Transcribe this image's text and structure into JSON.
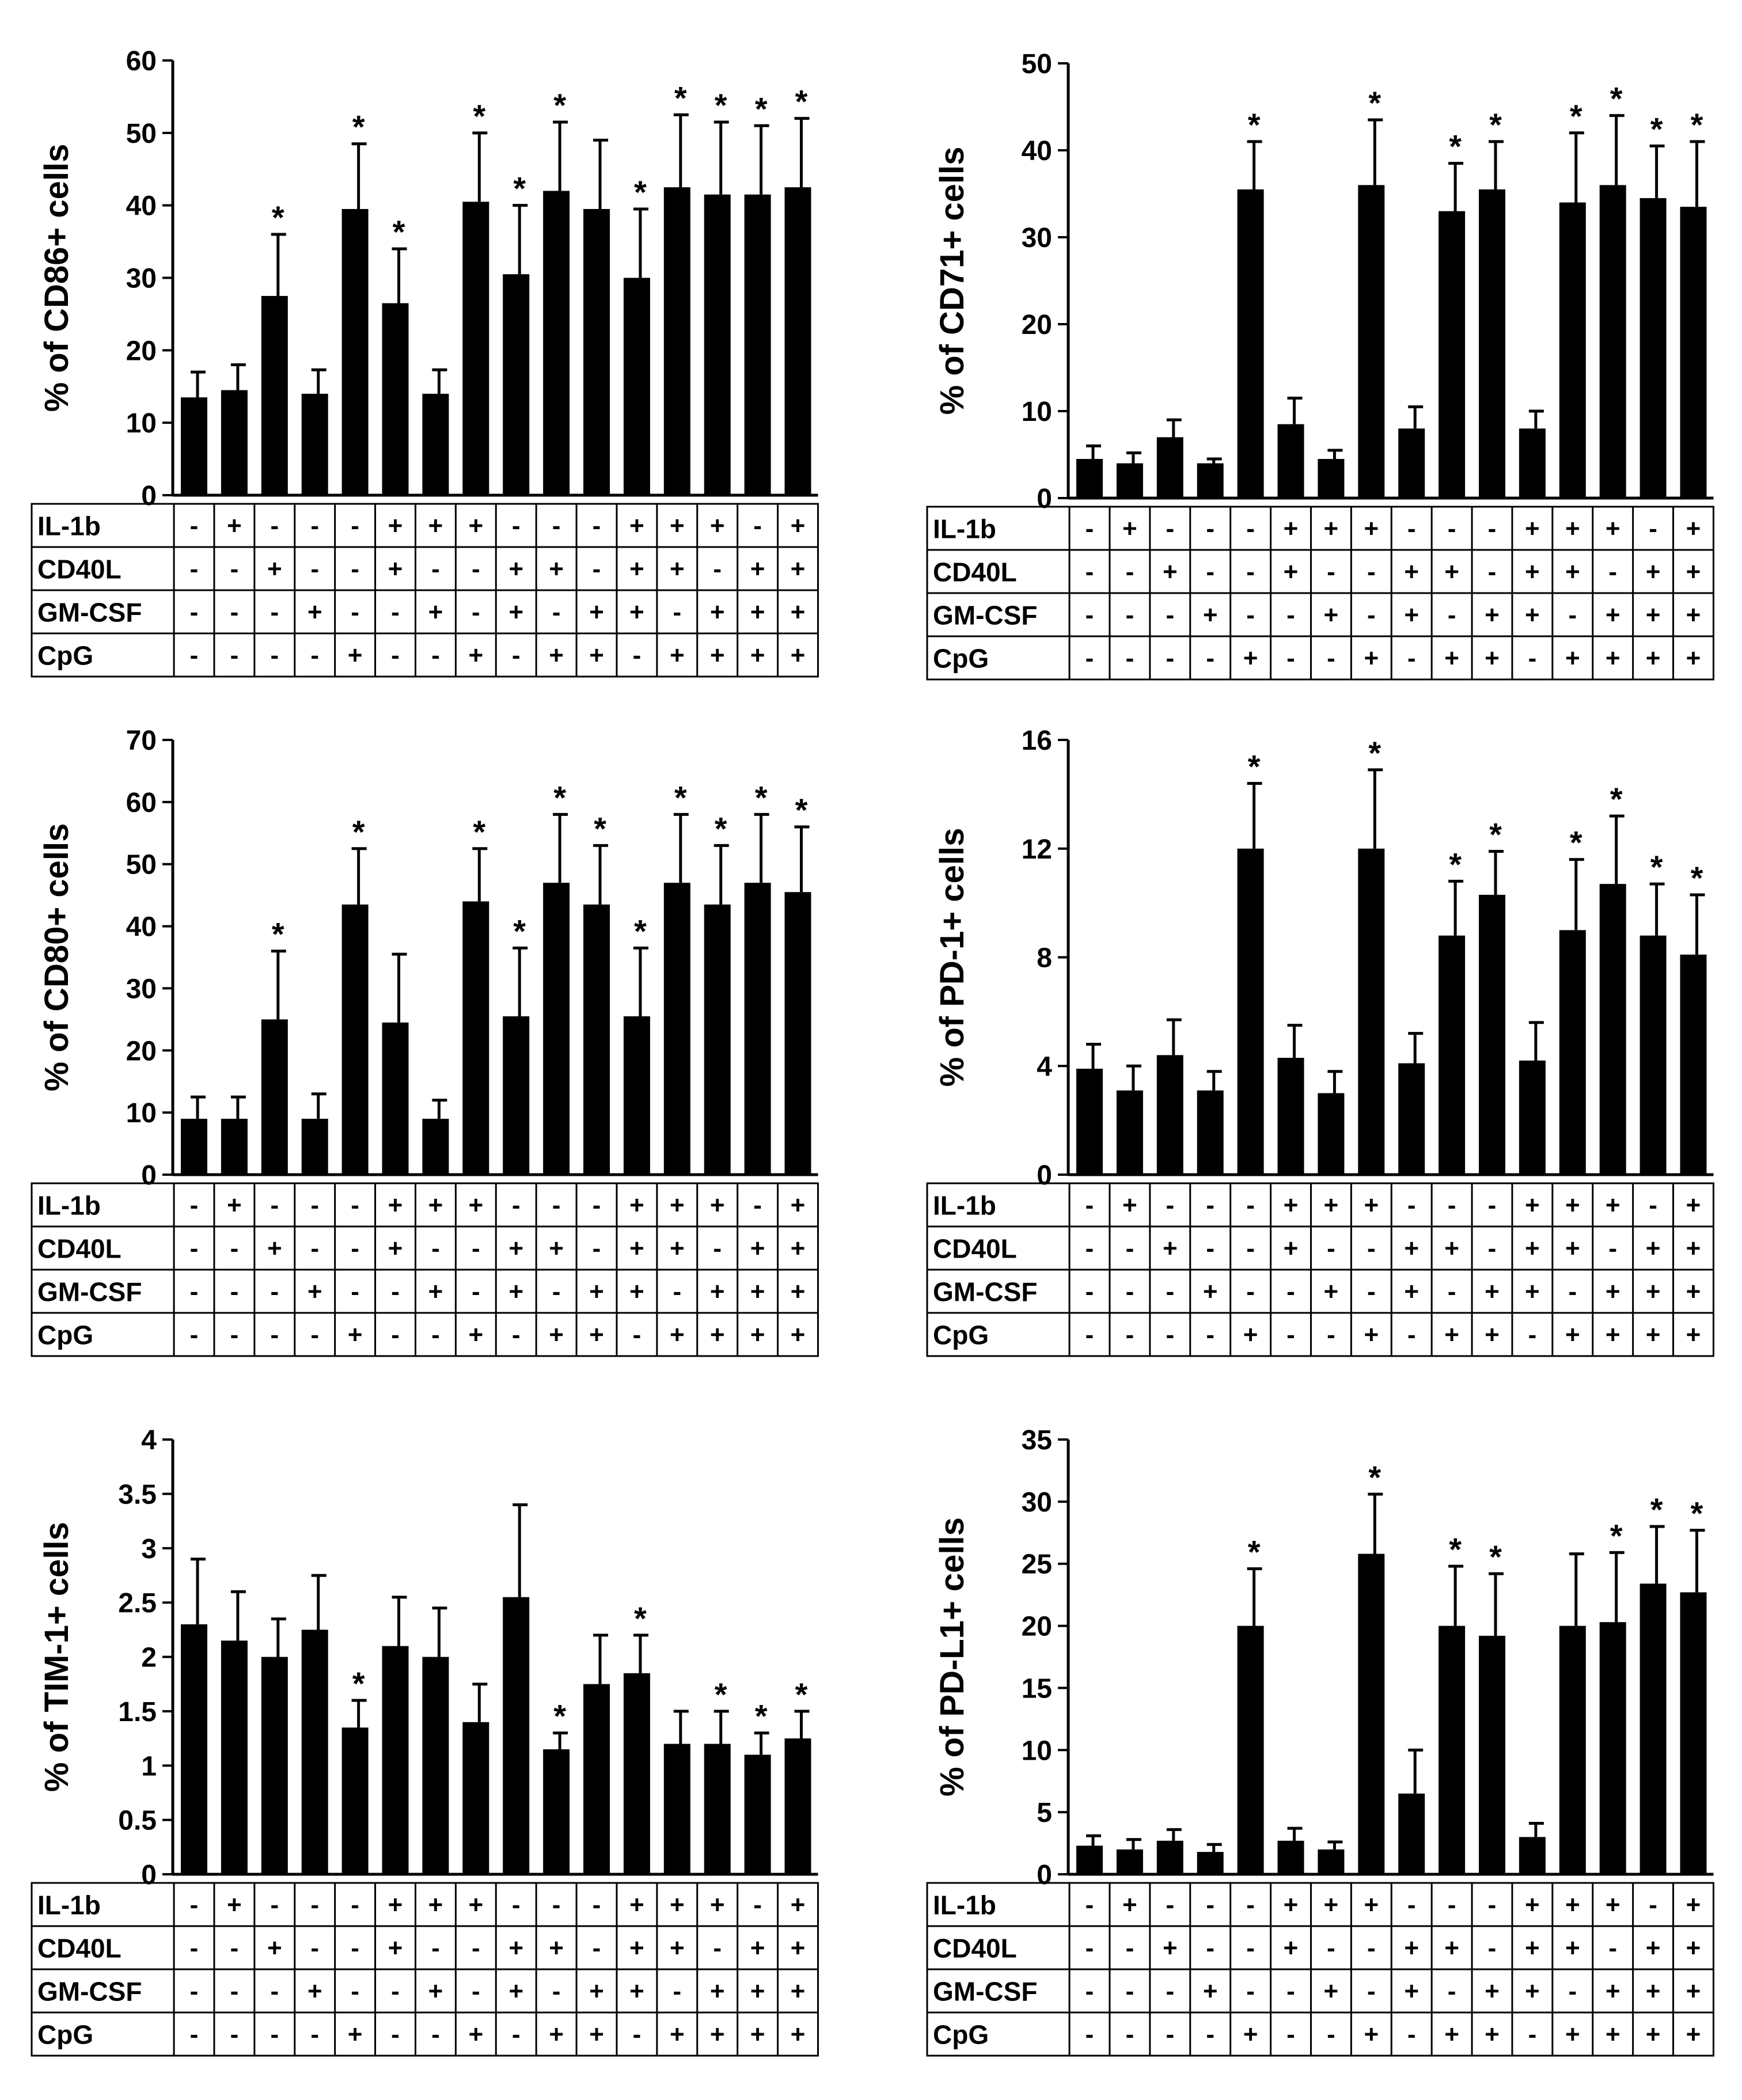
{
  "conditions": {
    "row_labels": [
      "IL-1b",
      "CD40L",
      "GM-CSF",
      "CpG"
    ],
    "rows": [
      [
        "-",
        "+",
        "-",
        "-",
        "-",
        "+",
        "+",
        "+",
        "-",
        "-",
        "-",
        "+",
        "+",
        "+",
        "-",
        "+"
      ],
      [
        "-",
        "-",
        "+",
        "-",
        "-",
        "+",
        "-",
        "-",
        "+",
        "+",
        "-",
        "+",
        "+",
        "-",
        "+",
        "+"
      ],
      [
        "-",
        "-",
        "-",
        "+",
        "-",
        "-",
        "+",
        "-",
        "+",
        "-",
        "+",
        "+",
        "-",
        "+",
        "+",
        "+"
      ],
      [
        "-",
        "-",
        "-",
        "-",
        "+",
        "-",
        "-",
        "+",
        "-",
        "+",
        "+",
        "-",
        "+",
        "+",
        "+",
        "+"
      ]
    ]
  },
  "chart_data": [
    {
      "id": "cd86",
      "type": "bar",
      "ylabel": "% of CD86+ cells",
      "ylim": [
        0,
        60
      ],
      "yticks": [
        0,
        10,
        20,
        30,
        40,
        50,
        60
      ],
      "ytick_labels": [
        "0",
        "10",
        "20",
        "30",
        "40",
        "50",
        "60"
      ],
      "values": [
        13.5,
        14.5,
        27.5,
        14,
        39.5,
        26.5,
        14,
        40.5,
        30.5,
        42,
        39.5,
        30,
        42.5,
        41.5,
        41.5,
        42.5
      ],
      "errors": [
        3.5,
        3.5,
        8.5,
        3.3,
        9,
        7.5,
        3.3,
        9.5,
        9.5,
        9.5,
        9.5,
        9.5,
        10,
        10,
        9.5,
        9.5
      ],
      "significant": [
        false,
        false,
        true,
        false,
        true,
        true,
        false,
        true,
        true,
        true,
        false,
        true,
        true,
        true,
        true,
        true
      ],
      "marker": "*"
    },
    {
      "id": "cd71",
      "type": "bar",
      "ylabel": "% of CD71+ cells",
      "ylim": [
        0,
        50
      ],
      "yticks": [
        0,
        10,
        20,
        30,
        40,
        50
      ],
      "ytick_labels": [
        "0",
        "10",
        "20",
        "30",
        "40",
        "50"
      ],
      "values": [
        4.5,
        4,
        7,
        4,
        35.5,
        8.5,
        4.5,
        36,
        8,
        33,
        35.5,
        8,
        34,
        36,
        34.5,
        33.5
      ],
      "errors": [
        1.5,
        1.2,
        2,
        0.5,
        5.5,
        3,
        1,
        7.5,
        2.5,
        5.5,
        5.5,
        2,
        8,
        8,
        6,
        7.5
      ],
      "significant": [
        false,
        false,
        false,
        false,
        true,
        false,
        false,
        true,
        false,
        true,
        true,
        false,
        true,
        true,
        true,
        true
      ],
      "marker": "*"
    },
    {
      "id": "cd80",
      "type": "bar",
      "ylabel": "% of CD80+ cells",
      "ylim": [
        0,
        70
      ],
      "yticks": [
        0,
        10,
        20,
        30,
        40,
        50,
        60,
        70
      ],
      "ytick_labels": [
        "0",
        "10",
        "20",
        "30",
        "40",
        "50",
        "60",
        "70"
      ],
      "values": [
        9,
        9,
        25,
        9,
        43.5,
        24.5,
        9,
        44,
        25.5,
        47,
        43.5,
        25.5,
        47,
        43.5,
        47,
        45.5
      ],
      "errors": [
        3.5,
        3.5,
        11,
        4,
        9,
        11,
        3,
        8.5,
        11,
        11,
        9.5,
        11,
        11,
        9.5,
        11,
        10.5
      ],
      "significant": [
        false,
        false,
        true,
        false,
        true,
        false,
        false,
        true,
        true,
        true,
        true,
        true,
        true,
        true,
        true,
        true
      ],
      "marker": "*"
    },
    {
      "id": "pd1",
      "type": "bar",
      "ylabel": "% of PD-1+ cells",
      "ylim": [
        0,
        16
      ],
      "yticks": [
        0,
        4,
        8,
        12,
        16
      ],
      "ytick_labels": [
        "0",
        "4",
        "8",
        "12",
        "16"
      ],
      "values": [
        3.9,
        3.1,
        4.4,
        3.1,
        12,
        4.3,
        3,
        12,
        4.1,
        8.8,
        10.3,
        4.2,
        9,
        10.7,
        8.8,
        8.1
      ],
      "errors": [
        0.9,
        0.9,
        1.3,
        0.7,
        2.4,
        1.2,
        0.8,
        2.9,
        1.1,
        2,
        1.6,
        1.4,
        2.6,
        2.5,
        1.9,
        2.2
      ],
      "significant": [
        false,
        false,
        false,
        false,
        true,
        false,
        false,
        true,
        false,
        true,
        true,
        false,
        true,
        true,
        true,
        true
      ],
      "marker": "*"
    },
    {
      "id": "tim1",
      "type": "bar",
      "ylabel": "% of TIM-1+ cells",
      "ylim": [
        0,
        4
      ],
      "yticks": [
        0,
        0.5,
        1,
        1.5,
        2,
        2.5,
        3,
        3.5,
        4
      ],
      "ytick_labels": [
        "0",
        "0.5",
        "1",
        "1.5",
        "2",
        "2.5",
        "3",
        "3.5",
        "4"
      ],
      "values": [
        2.3,
        2.15,
        2,
        2.25,
        1.35,
        2.1,
        2,
        1.4,
        2.55,
        1.15,
        1.75,
        1.85,
        1.2,
        1.2,
        1.1,
        1.25
      ],
      "errors": [
        0.6,
        0.45,
        0.35,
        0.5,
        0.25,
        0.45,
        0.45,
        0.35,
        0.85,
        0.15,
        0.45,
        0.35,
        0.3,
        0.3,
        0.2,
        0.25
      ],
      "significant": [
        false,
        false,
        false,
        false,
        true,
        false,
        false,
        false,
        false,
        true,
        false,
        true,
        false,
        true,
        true,
        true
      ],
      "marker": "*"
    },
    {
      "id": "pdl1",
      "type": "bar",
      "ylabel": "% of PD-L1+ cells",
      "ylim": [
        0,
        35
      ],
      "yticks": [
        0,
        5,
        10,
        15,
        20,
        25,
        30,
        35
      ],
      "ytick_labels": [
        "0",
        "5",
        "10",
        "15",
        "20",
        "25",
        "30",
        "35"
      ],
      "values": [
        2.3,
        2,
        2.7,
        1.8,
        20,
        2.7,
        2,
        25.8,
        6.5,
        20,
        19.2,
        3,
        20,
        20.3,
        23.4,
        22.7
      ],
      "errors": [
        0.8,
        0.8,
        0.9,
        0.6,
        4.6,
        1,
        0.6,
        4.8,
        3.5,
        4.8,
        5,
        1.1,
        5.8,
        5.6,
        4.6,
        5
      ],
      "significant": [
        false,
        false,
        false,
        false,
        true,
        false,
        false,
        true,
        false,
        true,
        true,
        false,
        false,
        true,
        true,
        true
      ],
      "marker": "*"
    }
  ]
}
